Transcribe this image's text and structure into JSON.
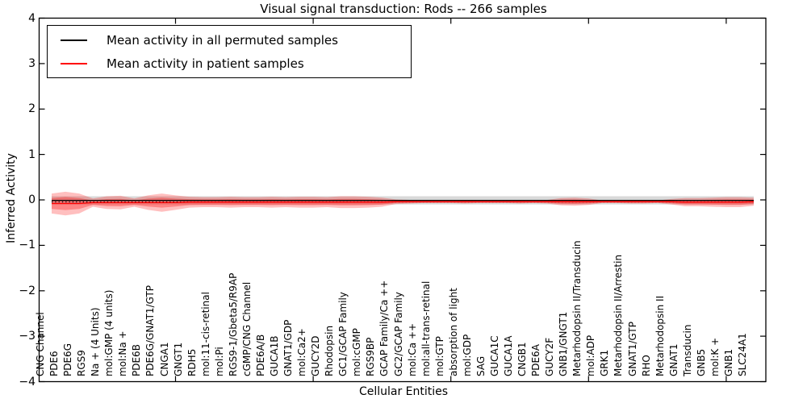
{
  "chart_data": {
    "type": "line",
    "title": "Visual signal transduction: Rods -- 266 samples",
    "xlabel": "Cellular Entities",
    "ylabel": "Inferred Activity",
    "ylim": [
      -4,
      4
    ],
    "grid": false,
    "legend_position": "upper left",
    "y_axis": {
      "tick_labels": [
        "4",
        "3",
        "2",
        "1",
        "0",
        "−1",
        "−2",
        "−3",
        "−4"
      ],
      "tick_values": [
        4,
        3,
        2,
        1,
        0,
        -1,
        -2,
        -3,
        -4
      ]
    },
    "x_major_tick_indices": [
      9,
      19,
      29,
      39,
      49
    ],
    "categories": [
      "CNG Channel",
      "PDE6",
      "PDE6G",
      "RGS9",
      "Na + (4 Units)",
      "mol:GMP (4 units)",
      "mol:Na +",
      "PDE6B",
      "PDE6G/GNAT1/GTP",
      "CNGA1",
      "GNGT1",
      "RDH5",
      "mol:11-cis-retinal",
      "mol:Pi",
      "RGS9-1/Gbeta5/R9AP",
      "cGMP/CNG Channel",
      "PDE6A/B",
      "GUCA1B",
      "GNAT1/GDP",
      "mol:Ca2+",
      "GUCY2D",
      "Rhodopsin",
      "GC1/GCAP Family",
      "mol:cGMP",
      "RGS9BP",
      "GCAP Family/Ca ++",
      "GC2/GCAP Family",
      "mol:Ca ++",
      "mol:all-trans-retinal",
      "mol:GTP",
      "absorption of light",
      "mol:GDP",
      "SAG",
      "GUCA1C",
      "GUCA1A",
      "CNGB1",
      "PDE6A",
      "GUCY2F",
      "GNB1/GNGT1",
      "Metarhodopsin II/Transducin",
      "mol:ADP",
      "GRK1",
      "Metarhodopsin II/Arrestin",
      "GNAT1/GTP",
      "RHO",
      "Metarhodopsin II",
      "GNAT1",
      "Transducin",
      "GNB5",
      "mol:K +",
      "GNB1",
      "SLC24A1"
    ],
    "series": [
      {
        "name": "Mean activity in all permuted samples",
        "color": "#000000",
        "line_style": "solid with dotted band edge",
        "values": [
          -0.01,
          -0.01,
          -0.01,
          -0.01,
          -0.01,
          -0.01,
          -0.01,
          -0.01,
          -0.01,
          -0.01,
          -0.01,
          -0.01,
          -0.01,
          -0.01,
          -0.01,
          -0.01,
          -0.01,
          -0.01,
          -0.01,
          -0.01,
          -0.01,
          -0.01,
          -0.01,
          -0.01,
          -0.01,
          -0.01,
          -0.01,
          -0.01,
          -0.01,
          -0.01,
          -0.01,
          -0.01,
          -0.01,
          -0.01,
          -0.01,
          -0.01,
          -0.01,
          -0.01,
          -0.01,
          -0.01,
          -0.01,
          -0.01,
          -0.01,
          -0.01,
          -0.01,
          -0.01,
          -0.01,
          -0.01,
          -0.01,
          -0.01,
          -0.01,
          -0.01
        ],
        "band_halfwidth": [
          0.09,
          0.09,
          0.09,
          0.09,
          0.09,
          0.09,
          0.09,
          0.09,
          0.09,
          0.09,
          0.09,
          0.09,
          0.09,
          0.09,
          0.09,
          0.09,
          0.09,
          0.09,
          0.09,
          0.09,
          0.09,
          0.09,
          0.09,
          0.09,
          0.09,
          0.09,
          0.09,
          0.09,
          0.09,
          0.09,
          0.09,
          0.09,
          0.09,
          0.09,
          0.09,
          0.09,
          0.09,
          0.09,
          0.09,
          0.09,
          0.09,
          0.09,
          0.09,
          0.09,
          0.09,
          0.09,
          0.09,
          0.09,
          0.09,
          0.09,
          0.09,
          0.09
        ],
        "band_color": "#787878"
      },
      {
        "name": "Mean activity in patient samples",
        "color": "#ff0000",
        "line_style": "solid",
        "values": [
          -0.08,
          -0.08,
          -0.08,
          -0.06,
          -0.06,
          -0.06,
          -0.06,
          -0.06,
          -0.06,
          -0.06,
          -0.05,
          -0.05,
          -0.05,
          -0.05,
          -0.05,
          -0.05,
          -0.05,
          -0.05,
          -0.05,
          -0.05,
          -0.05,
          -0.05,
          -0.05,
          -0.05,
          -0.05,
          -0.04,
          -0.04,
          -0.04,
          -0.04,
          -0.04,
          -0.04,
          -0.04,
          -0.04,
          -0.04,
          -0.04,
          -0.04,
          -0.04,
          -0.04,
          -0.04,
          -0.04,
          -0.04,
          -0.04,
          -0.04,
          -0.04,
          -0.04,
          -0.04,
          -0.05,
          -0.05,
          -0.05,
          -0.05,
          -0.05,
          -0.04
        ],
        "band_halfwidth": [
          0.22,
          0.26,
          0.22,
          0.09,
          0.14,
          0.15,
          0.09,
          0.16,
          0.2,
          0.16,
          0.12,
          0.11,
          0.11,
          0.12,
          0.11,
          0.11,
          0.12,
          0.11,
          0.12,
          0.12,
          0.11,
          0.13,
          0.13,
          0.12,
          0.1,
          0.05,
          0.04,
          0.03,
          0.03,
          0.03,
          0.04,
          0.03,
          0.03,
          0.03,
          0.04,
          0.03,
          0.04,
          0.08,
          0.09,
          0.07,
          0.03,
          0.03,
          0.04,
          0.04,
          0.03,
          0.06,
          0.09,
          0.09,
          0.1,
          0.11,
          0.11,
          0.09
        ],
        "band_color": "#ff0000"
      }
    ]
  }
}
